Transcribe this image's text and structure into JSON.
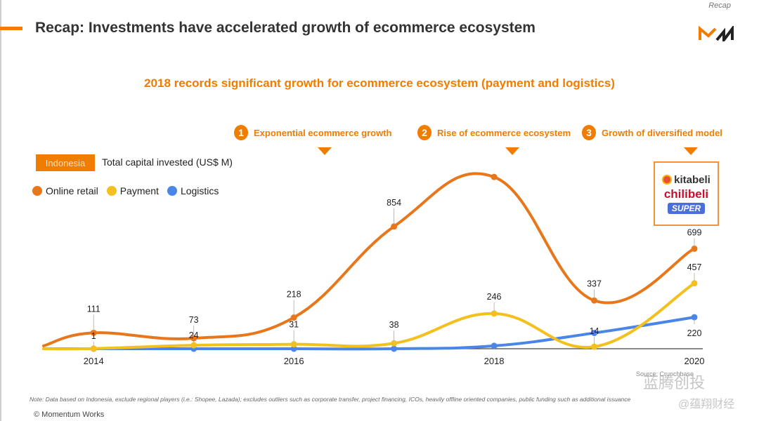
{
  "header": {
    "title": "Recap: Investments have accelerated growth of ecommerce ecosystem",
    "section_tag": "Recap",
    "logo": "MW",
    "subtitle": "2018 records significant growth for ecommerce ecosystem (payment and logistics)"
  },
  "phases": [
    {
      "number": "1",
      "label": "Exponential ecommerce growth"
    },
    {
      "number": "2",
      "label": "Rise of ecommerce ecosystem"
    },
    {
      "number": "3",
      "label": "Growth of diversified model"
    }
  ],
  "country_badge": "Indonesia",
  "metric_label": "Total capital invested (US$ M)",
  "brands": {
    "kitabeli": "kitabeli",
    "chilibeli": "chilibeli",
    "super": "SUPER"
  },
  "colors": {
    "online_retail": "#e8771c",
    "payment": "#f4c020",
    "logistics": "#4a86e8",
    "accent": "#f07c00"
  },
  "chart_data": {
    "type": "line",
    "title": "Total capital invested (US$ M)",
    "x": [
      2013.5,
      2014,
      2015,
      2016,
      2017,
      2018,
      2019,
      2020
    ],
    "x_ticks": [
      "2014",
      "2016",
      "2018",
      "2020"
    ],
    "xlim": [
      2013.5,
      2020
    ],
    "ylim": [
      0,
      1250
    ],
    "grid": false,
    "legend": "top-left",
    "series": [
      {
        "name": "Online retail",
        "key": "online_retail",
        "values": [
          20,
          111,
          73,
          218,
          854,
          1200,
          337,
          699
        ],
        "labels": [
          null,
          "111",
          "73",
          "218",
          "854",
          null,
          "337",
          "699"
        ]
      },
      {
        "name": "Payment",
        "key": "payment",
        "values": [
          0,
          1,
          24,
          31,
          38,
          246,
          14,
          457
        ],
        "labels": [
          null,
          "1",
          "24",
          "31",
          "38",
          "246",
          "14",
          "457"
        ]
      },
      {
        "name": "Logistics",
        "key": "logistics",
        "values": [
          0,
          0,
          0,
          0,
          0,
          20,
          110,
          220
        ],
        "labels": [
          null,
          null,
          null,
          null,
          null,
          null,
          null,
          "220"
        ]
      }
    ]
  },
  "footer": {
    "note": "Note: Data based on Indonesia, exclude regional players (i.e.: Shopee, Lazada); excludes outliers such as corporate transfer, project financing, ICOs, heavily offline oriented companies, public funding such as additional issuance",
    "copyright": "© Momentum Works",
    "source": "Source: Crunchbase"
  }
}
